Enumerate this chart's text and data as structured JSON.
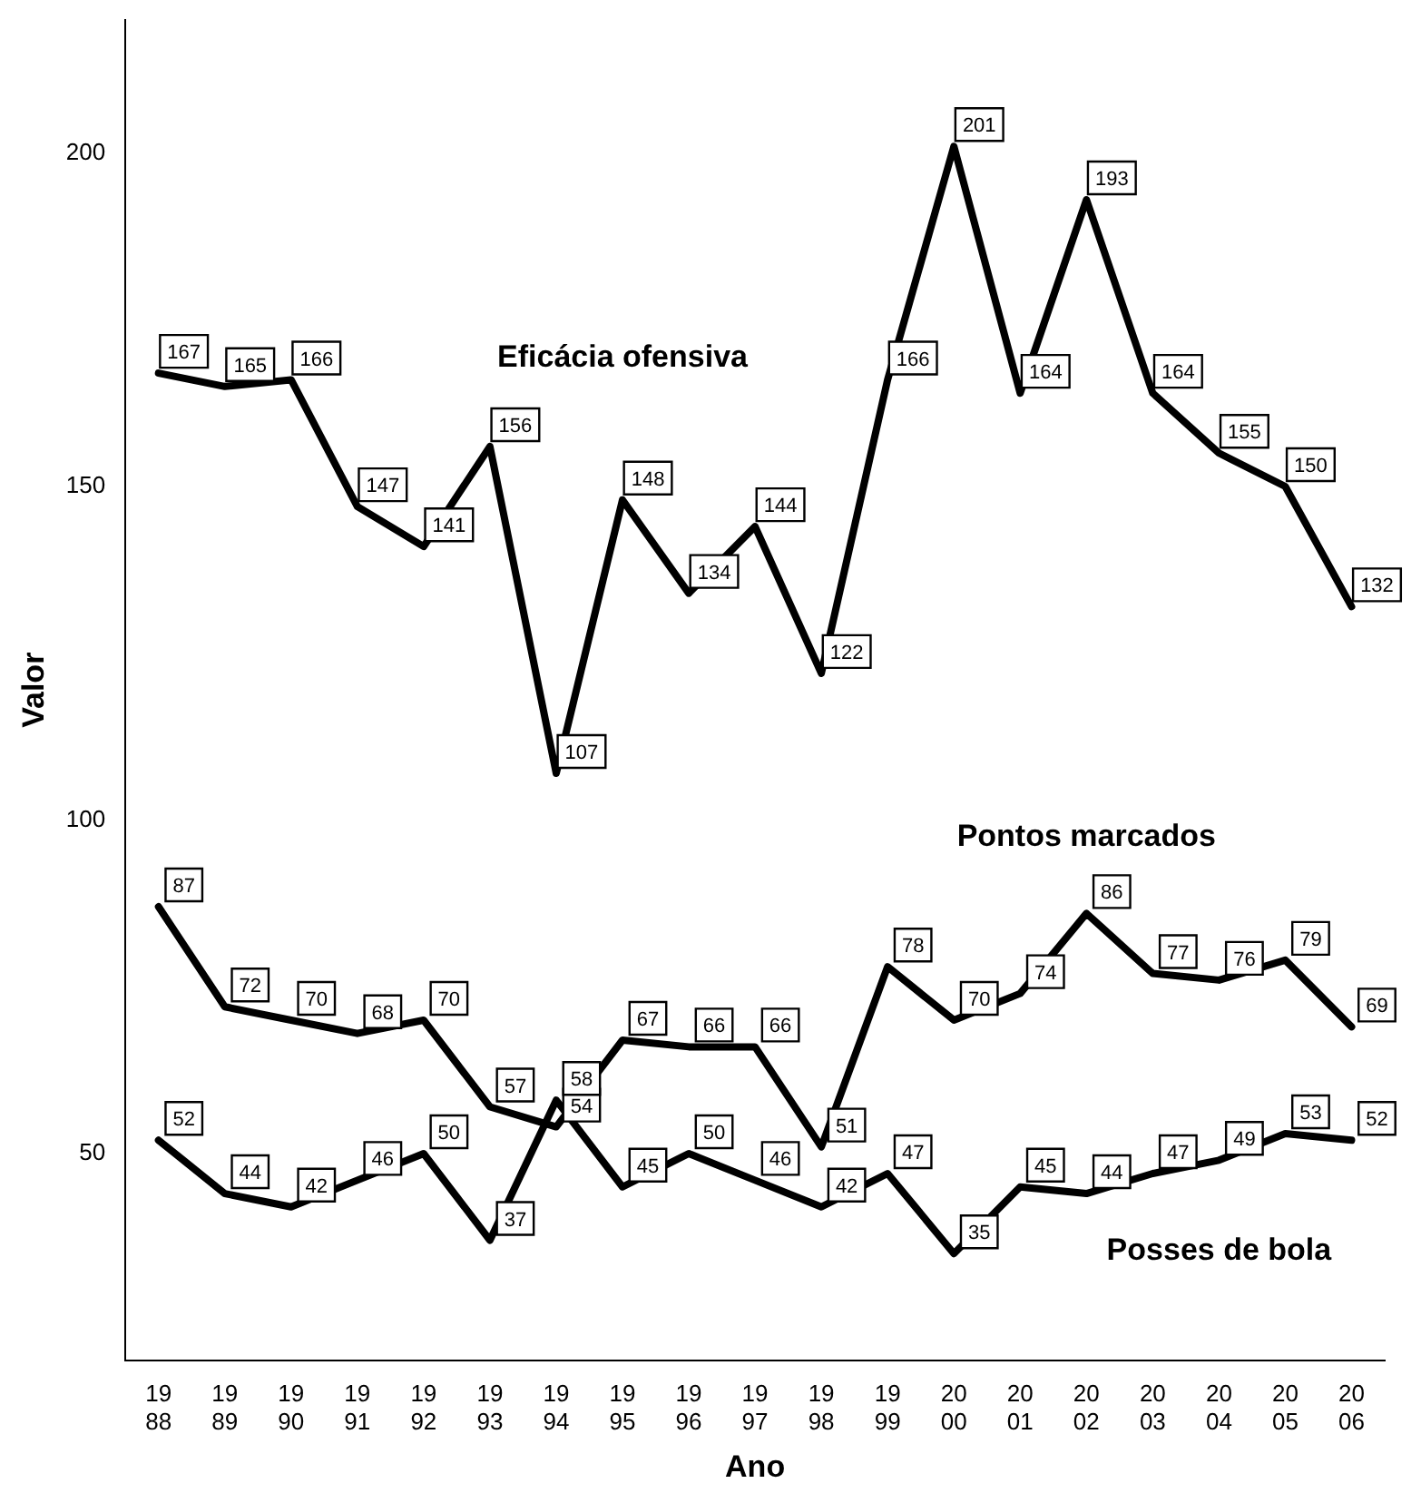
{
  "chart_data": {
    "type": "line",
    "xlabel": "Ano",
    "ylabel": "Valor",
    "categories": [
      "1988",
      "1989",
      "1990",
      "1991",
      "1992",
      "1993",
      "1994",
      "1995",
      "1996",
      "1997",
      "1998",
      "1999",
      "2000",
      "2001",
      "2002",
      "2003",
      "2004",
      "2005",
      "2006"
    ],
    "series": [
      {
        "name": "Eficácia ofensiva",
        "color": "#000000",
        "values": [
          167,
          165,
          166,
          147,
          141,
          156,
          107,
          148,
          134,
          144,
          122,
          166,
          201,
          164,
          193,
          164,
          155,
          150,
          132
        ]
      },
      {
        "name": "Pontos marcados",
        "color": "#000000",
        "values": [
          87,
          72,
          70,
          68,
          70,
          57,
          54,
          67,
          66,
          66,
          51,
          78,
          70,
          74,
          86,
          77,
          76,
          79,
          69
        ]
      },
      {
        "name": "Posses de bola",
        "color": "#000000",
        "values": [
          52,
          44,
          42,
          46,
          50,
          37,
          58,
          45,
          50,
          46,
          42,
          47,
          35,
          45,
          44,
          47,
          49,
          53,
          52
        ]
      }
    ],
    "ylim": [
      19,
      220
    ],
    "yticks": [
      50,
      100,
      150,
      200
    ],
    "grid": false,
    "legend": false,
    "marker": "none",
    "line_style": "solid",
    "data_labels": true
  }
}
